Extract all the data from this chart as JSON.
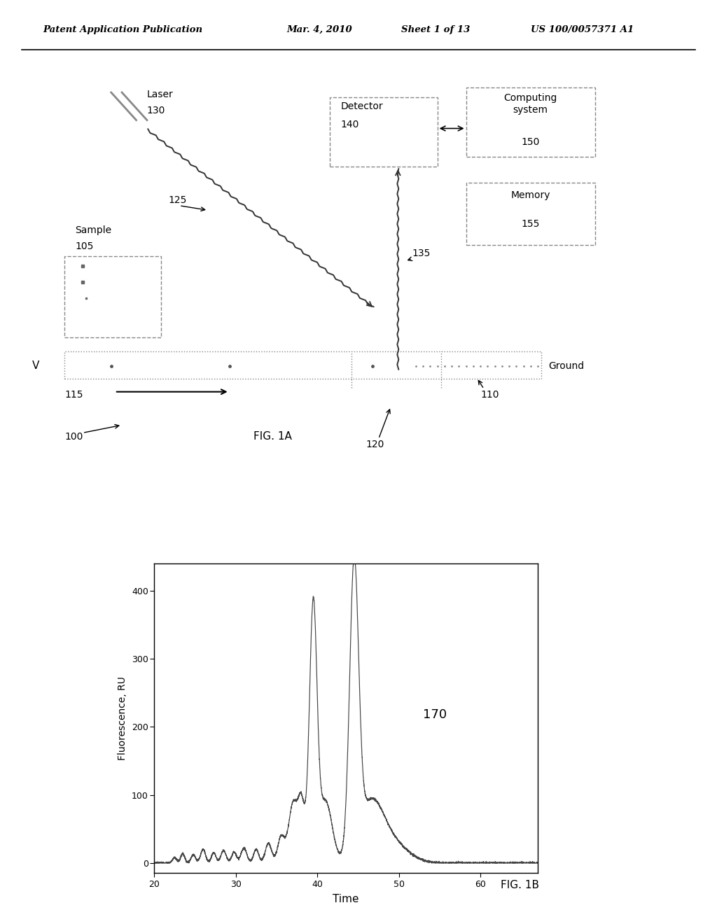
{
  "bg_color": "#ffffff",
  "header_text": "Patent Application Publication",
  "header_date": "Mar. 4, 2010",
  "header_sheet": "Sheet 1 of 13",
  "header_patent": "US 100/0057371 A1",
  "fig1a_label": "FIG. 1A",
  "fig1b_label": "FIG. 1B",
  "label_100": "100",
  "label_105": "105",
  "label_110": "110",
  "label_115": "115",
  "label_120": "120",
  "label_125": "125",
  "label_130": "130",
  "label_135": "135",
  "label_140": "140",
  "label_150": "150",
  "label_155": "155",
  "label_170": "170",
  "text_laser": "Laser",
  "text_sample": "Sample",
  "text_detector": "Detector",
  "text_computing": "Computing\nsystem",
  "text_memory": "Memory",
  "text_ground": "Ground",
  "text_v": "V",
  "text_time": "Time",
  "text_fluorescence": "Fluorescence, RU",
  "graph_xlim": [
    20,
    67
  ],
  "graph_ylim": [
    -15,
    440
  ],
  "graph_xticks": [
    20,
    30,
    40,
    50,
    60
  ],
  "graph_yticks": [
    0,
    100,
    200,
    300,
    400
  ],
  "line_color": "#444444"
}
